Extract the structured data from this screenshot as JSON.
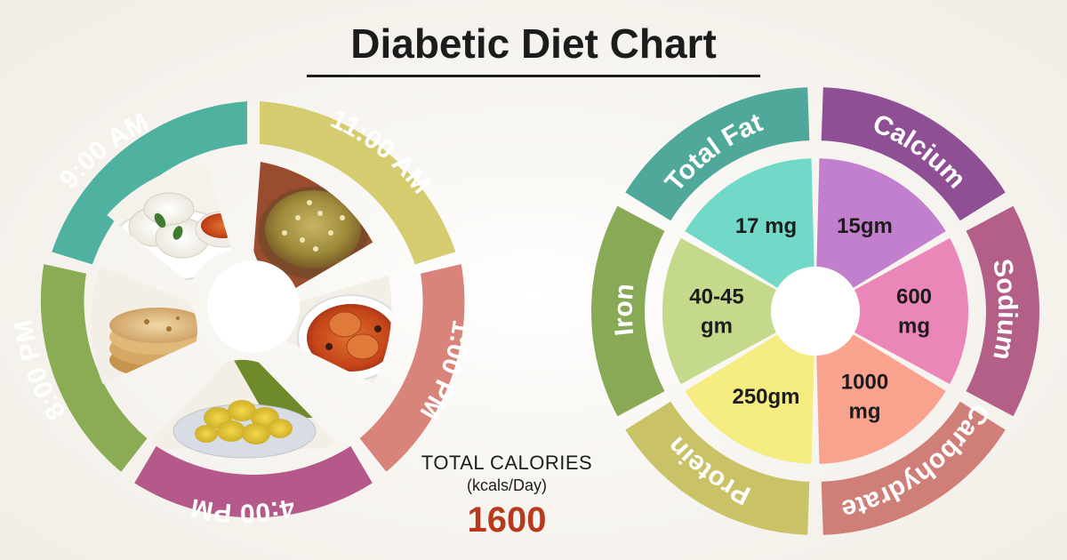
{
  "title": "Diabetic Diet Chart",
  "meal_times": [
    {
      "label": "9:00 AM",
      "color": "#4fb1a0",
      "food": "idli with sambar"
    },
    {
      "label": "11:00 AM",
      "color": "#d4cc6e",
      "food": "sprouts"
    },
    {
      "label": "1:00 PM",
      "color": "#d9847a",
      "food": "fish curry"
    },
    {
      "label": "4:00 PM",
      "color": "#b5588a",
      "food": "jackfruit"
    },
    {
      "label": "8:00 PM",
      "color": "#8aac54",
      "food": "chapati"
    }
  ],
  "total_calories": {
    "title": "TOTAL CALORIES",
    "unit": "(kcals/Day)",
    "value": "1600",
    "color": "#b83a1e"
  },
  "chart_data": {
    "type": "pie",
    "title": "",
    "categories": [
      "Total Fat",
      "Calcium",
      "Sodium",
      "Carbohydrate",
      "Protein",
      "Iron"
    ],
    "values_text": [
      "15gm",
      "600 mg",
      "1000 mg",
      "250gm",
      "40-45 gm",
      "17 mg"
    ],
    "value_lines": [
      [
        "15gm"
      ],
      [
        "600",
        "mg"
      ],
      [
        "1000",
        "mg"
      ],
      [
        "250gm"
      ],
      [
        "40-45",
        "gm"
      ],
      [
        "17 mg"
      ]
    ],
    "ring_colors": [
      "#8e4f95",
      "#b45f88",
      "#d07f78",
      "#c9c266",
      "#88a956",
      "#4fa89a"
    ],
    "slice_colors": [
      "#c27fcd",
      "#ea86b8",
      "#f9a28e",
      "#f5ec82",
      "#c5d98c",
      "#72d9c8"
    ]
  }
}
